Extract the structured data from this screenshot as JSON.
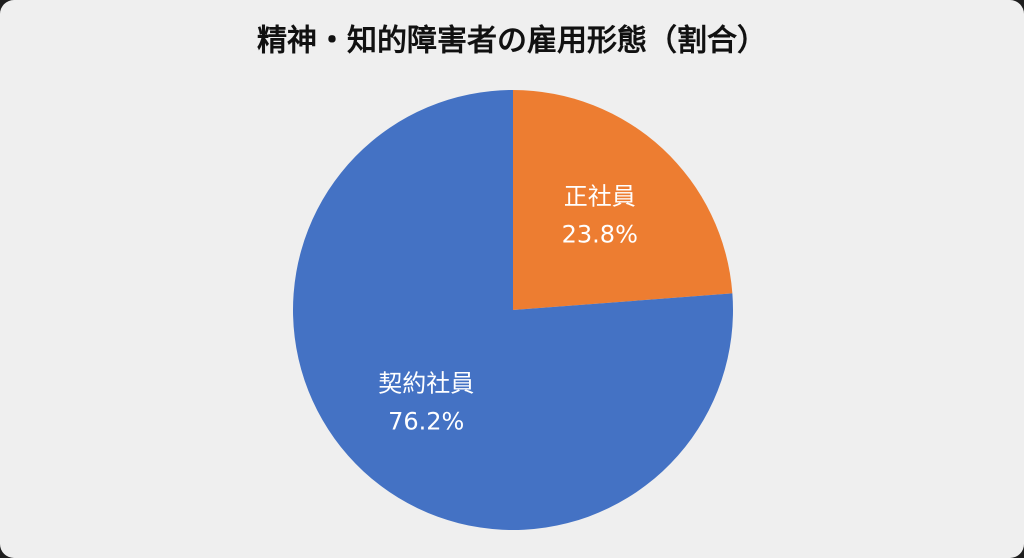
{
  "chart_data": {
    "type": "pie",
    "title": "精神・知的障害者の雇用形態（割合）",
    "categories": [
      "正社員",
      "契約社員"
    ],
    "values": [
      23.8,
      76.2
    ],
    "value_labels": [
      "23.8%",
      "76.2%"
    ],
    "colors": [
      "#ed7d31",
      "#4472c4"
    ]
  }
}
